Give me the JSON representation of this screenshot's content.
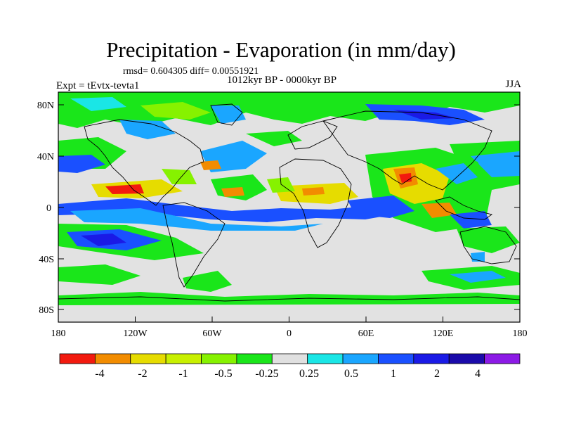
{
  "title": "Precipitation - Evaporation (in mm/day)",
  "stats": "rmsd= 0.604305 diff= 0.00551921",
  "period": "1012kyr BP - 0000kyr BP",
  "experiment": "Expt = tEvtx-tevta1",
  "season": "JJA",
  "latitude_labels": [
    "80N",
    "40N",
    "0",
    "40S",
    "80S"
  ],
  "longitude_labels": [
    "180",
    "120W",
    "60W",
    "0",
    "60E",
    "120E",
    "180"
  ],
  "colorbar": {
    "colors": [
      "#f21a0f",
      "#f28c00",
      "#e6dc00",
      "#c8f000",
      "#86f200",
      "#1ae61a",
      "#e0e0e0",
      "#1ae6e6",
      "#1aa6ff",
      "#1a50ff",
      "#1a1ae6",
      "#1a0aaa",
      "#8c1ae6"
    ],
    "labels": [
      "-4",
      "-2",
      "-1",
      "-0.5",
      "-0.25",
      "0.25",
      "0.5",
      "1",
      "2",
      "4"
    ]
  },
  "map_colors": {
    "background": "#e2e2e2",
    "coast": "#000000"
  }
}
